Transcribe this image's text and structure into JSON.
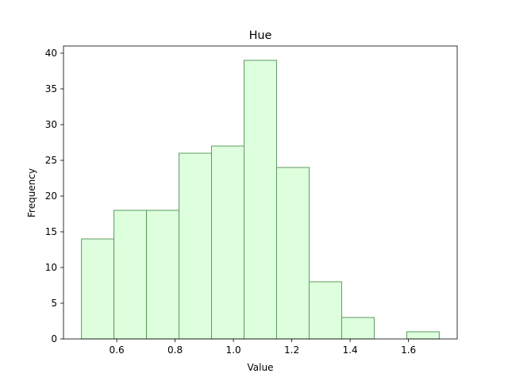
{
  "chart_data": {
    "type": "bar",
    "title": "Hue",
    "xlabel": "Value",
    "ylabel": "Frequency",
    "bin_edges": [
      0.479,
      0.5905,
      0.702,
      0.8135,
      0.925,
      1.0365,
      1.148,
      1.2595,
      1.371,
      1.4825,
      1.594,
      1.7055
    ],
    "values": [
      14,
      18,
      18,
      26,
      27,
      39,
      24,
      8,
      3,
      0,
      1
    ],
    "xlim": [
      0.4175,
      1.767
    ],
    "ylim": [
      0,
      41
    ],
    "xticks": [
      0.6,
      0.8,
      1.0,
      1.2,
      1.4,
      1.6
    ],
    "xtick_labels": [
      "0.6",
      "0.8",
      "1.0",
      "1.2",
      "1.4",
      "1.6"
    ],
    "yticks": [
      0,
      5,
      10,
      15,
      20,
      25,
      30,
      35,
      40
    ],
    "ytick_labels": [
      "0",
      "5",
      "10",
      "15",
      "20",
      "25",
      "30",
      "35",
      "40"
    ],
    "grid": false,
    "colors": {
      "bar_fill": "#ddffdd",
      "bar_edge": "#5f9a5f"
    }
  }
}
